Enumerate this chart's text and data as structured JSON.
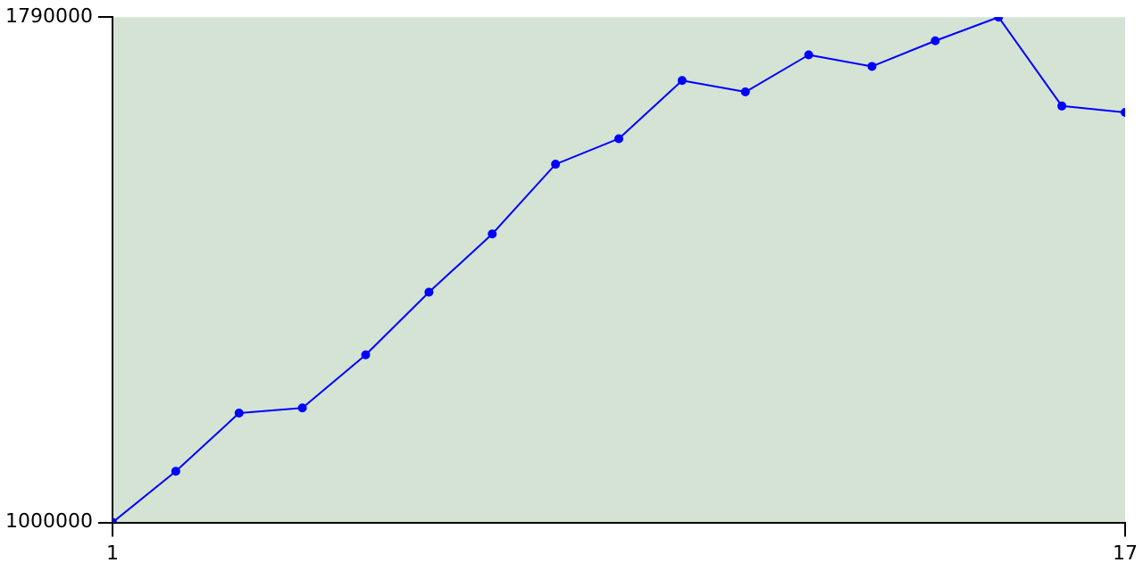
{
  "chart_data": {
    "type": "line",
    "x": [
      1,
      2,
      3,
      4,
      5,
      6,
      7,
      8,
      9,
      10,
      11,
      12,
      13,
      14,
      15,
      16,
      17
    ],
    "series": [
      {
        "color": "#0000ff",
        "values": [
          1000000,
          1080000,
          1171000,
          1179000,
          1262000,
          1360000,
          1451000,
          1560000,
          1600000,
          1691000,
          1673000,
          1731000,
          1713000,
          1753000,
          1790000,
          1651000,
          1641000
        ]
      }
    ],
    "xlim": [
      1,
      17
    ],
    "xticks": [
      1,
      17
    ],
    "ylim": [
      1000000,
      1790000
    ],
    "yticks": [
      1000000,
      1790000
    ],
    "grid": false,
    "legend": false,
    "marker": "circle",
    "line_style": "solid"
  }
}
